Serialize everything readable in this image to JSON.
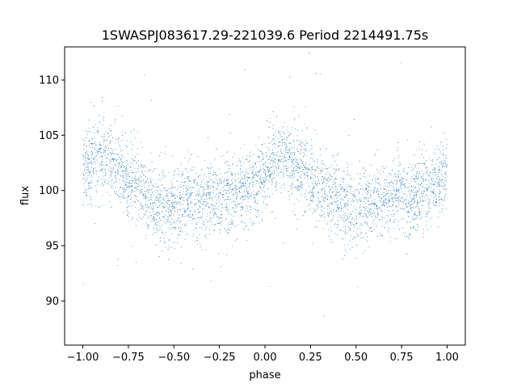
{
  "chart_data": {
    "type": "scatter",
    "title": "1SWASPJ083617.29-221039.6 Period 2214491.75s",
    "xlabel": "phase",
    "ylabel": "flux",
    "xlim": [
      -1.1,
      1.1
    ],
    "ylim": [
      86,
      113
    ],
    "x_ticks": [
      -1.0,
      -0.75,
      -0.5,
      -0.25,
      0.0,
      0.25,
      0.5,
      0.75,
      1.0
    ],
    "x_tick_labels": [
      "−1.00",
      "−0.75",
      "−0.50",
      "−0.25",
      "0.00",
      "0.25",
      "0.50",
      "0.75",
      "1.00"
    ],
    "y_ticks": [
      90,
      95,
      100,
      105,
      110
    ],
    "y_tick_labels": [
      "90",
      "95",
      "100",
      "105",
      "110"
    ],
    "grid": false,
    "legend": "none",
    "marker_color": "#1f77b4",
    "series": [
      {
        "description_points": "phase-folded light curve, mean profile (phase, flux)",
        "x": [
          -1.0,
          -0.95,
          -0.9,
          -0.85,
          -0.8,
          -0.75,
          -0.7,
          -0.65,
          -0.6,
          -0.55,
          -0.5,
          -0.45,
          -0.4,
          -0.35,
          -0.3,
          -0.25,
          -0.2,
          -0.15,
          -0.1,
          -0.05,
          0.0,
          0.05,
          0.1,
          0.15,
          0.2,
          0.25,
          0.3,
          0.35,
          0.4,
          0.45,
          0.5,
          0.55,
          0.6,
          0.65,
          0.7,
          0.75,
          0.8,
          0.85,
          0.9,
          0.95,
          1.0
        ],
        "y": [
          102,
          102.5,
          103,
          102.5,
          102,
          101,
          100.5,
          99.5,
          99,
          98.5,
          98.5,
          99,
          99,
          99,
          99.5,
          99.5,
          99.5,
          99.5,
          100,
          100.5,
          102,
          102.5,
          103,
          102.5,
          102,
          101,
          100.5,
          99.5,
          99,
          98.5,
          98.5,
          99,
          99,
          99,
          99.5,
          99.5,
          99.5,
          99.5,
          100,
          100.5,
          102
        ]
      }
    ]
  }
}
